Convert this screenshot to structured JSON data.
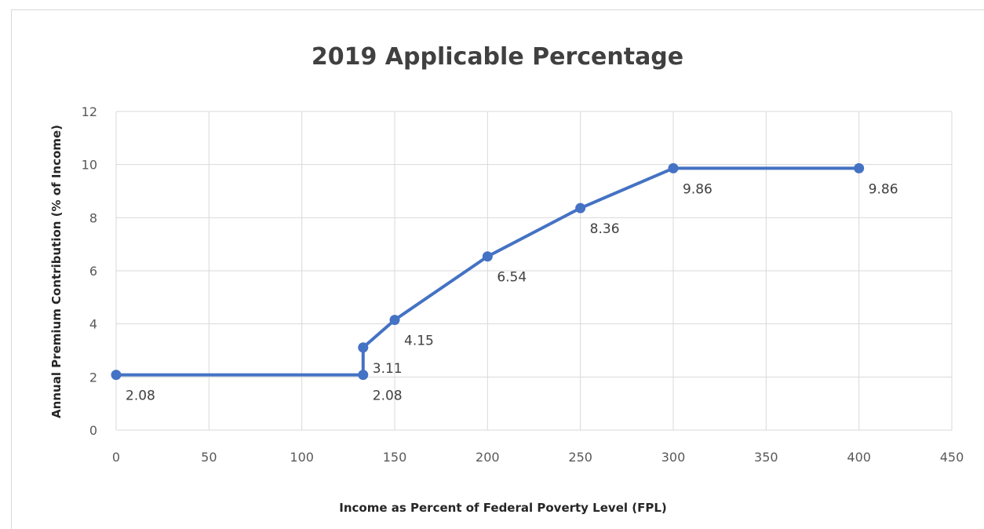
{
  "chart_data": {
    "type": "line",
    "title": "2019 Applicable Percentage",
    "xlabel": "Income as Percent of Federal Poverty Level (FPL)",
    "ylabel": "Annual Premium Contribution (% of Income)",
    "xlim": [
      0,
      450
    ],
    "ylim": [
      0,
      12
    ],
    "x_ticks": [
      0,
      50,
      100,
      150,
      200,
      250,
      300,
      350,
      400,
      450
    ],
    "y_ticks": [
      0,
      2,
      4,
      6,
      8,
      10,
      12
    ],
    "grid": true,
    "series_color": "#4472c4",
    "points": [
      {
        "x": 0,
        "y": 2.08,
        "label": "2.08"
      },
      {
        "x": 133,
        "y": 2.08,
        "label": "2.08"
      },
      {
        "x": 133,
        "y": 3.11,
        "label": "3.11"
      },
      {
        "x": 150,
        "y": 4.15,
        "label": "4.15"
      },
      {
        "x": 200,
        "y": 6.54,
        "label": "6.54"
      },
      {
        "x": 250,
        "y": 8.36,
        "label": "8.36"
      },
      {
        "x": 300,
        "y": 9.86,
        "label": "9.86"
      },
      {
        "x": 400,
        "y": 9.86,
        "label": "9.86"
      }
    ]
  }
}
